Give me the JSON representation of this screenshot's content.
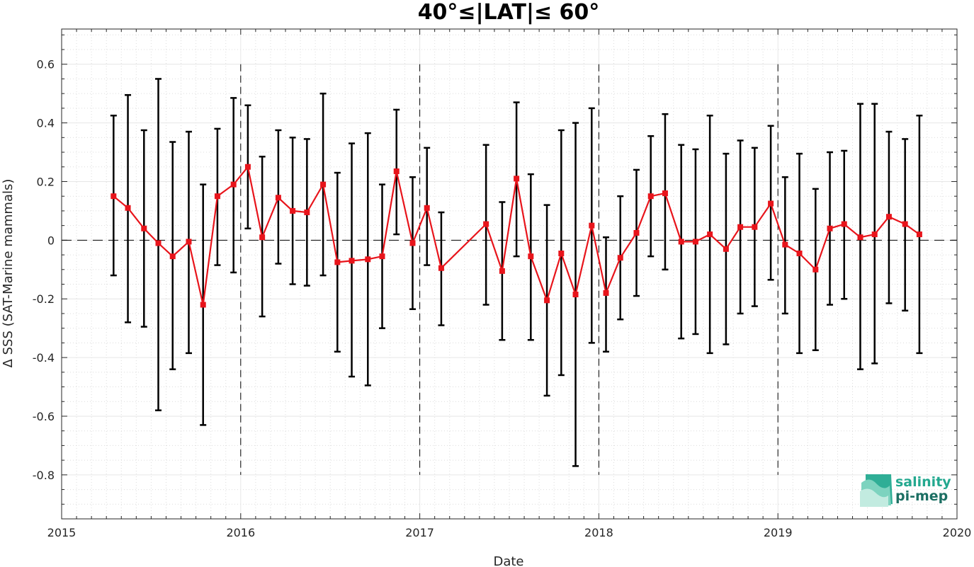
{
  "chart_data": {
    "type": "line",
    "title": "40°≤|LAT|≤ 60°",
    "xlabel": "Date",
    "ylabel": "Δ SSS (SAT-Marine mammals)",
    "xlim": [
      2015,
      2020
    ],
    "ylim": [
      -0.95,
      0.72
    ],
    "x_ticks": [
      "2015",
      "2016",
      "2017",
      "2018",
      "2019",
      "2020"
    ],
    "y_ticks": [
      "-0.8",
      "-0.6",
      "-0.4",
      "-0.2",
      "0",
      "0.2",
      "0.4",
      "0.6"
    ],
    "grid": true,
    "colors": {
      "mean": "#e8141b",
      "errorbar": "#000000",
      "zero_line": "#000000"
    },
    "series": [
      {
        "x": [
          2015.29,
          2015.37,
          2015.46,
          2015.54,
          2015.62,
          2015.71,
          2015.79,
          2015.87,
          2015.96,
          2016.04,
          2016.12,
          2016.21,
          2016.29,
          2016.37,
          2016.46,
          2016.54,
          2016.62,
          2016.71,
          2016.79,
          2016.87,
          2016.96,
          2017.04,
          2017.12,
          2017.37,
          2017.46,
          2017.54,
          2017.62,
          2017.71,
          2017.79,
          2017.87,
          2017.96,
          2018.04,
          2018.12,
          2018.21,
          2018.29,
          2018.37,
          2018.46,
          2018.54,
          2018.62,
          2018.71,
          2018.79,
          2018.87,
          2018.96,
          2019.04,
          2019.12,
          2019.21,
          2019.29,
          2019.37,
          2019.46,
          2019.54,
          2019.62,
          2019.71,
          2019.79
        ],
        "values": [
          0.15,
          0.11,
          0.04,
          -0.01,
          -0.055,
          -0.005,
          -0.22,
          0.15,
          0.19,
          0.25,
          0.01,
          0.145,
          0.1,
          0.095,
          0.19,
          -0.075,
          -0.07,
          -0.065,
          -0.055,
          0.235,
          -0.01,
          0.11,
          -0.095,
          0.055,
          -0.105,
          0.21,
          -0.055,
          -0.205,
          -0.045,
          -0.185,
          0.05,
          -0.18,
          -0.06,
          0.025,
          0.15,
          0.16,
          -0.005,
          -0.005,
          0.02,
          -0.03,
          0.045,
          0.045,
          0.125,
          -0.015,
          -0.045,
          -0.1,
          0.04,
          0.055,
          0.01,
          0.02,
          0.08,
          0.055,
          0.02
        ],
        "lower": [
          -0.12,
          -0.28,
          -0.295,
          -0.58,
          -0.44,
          -0.385,
          -0.63,
          -0.085,
          -0.11,
          0.04,
          -0.26,
          -0.08,
          -0.15,
          -0.155,
          -0.12,
          -0.38,
          -0.465,
          -0.495,
          -0.3,
          0.02,
          -0.235,
          -0.085,
          -0.29,
          -0.22,
          -0.34,
          -0.055,
          -0.34,
          -0.53,
          -0.46,
          -0.77,
          -0.35,
          -0.38,
          -0.27,
          -0.19,
          -0.055,
          -0.1,
          -0.335,
          -0.32,
          -0.385,
          -0.355,
          -0.25,
          -0.225,
          -0.135,
          -0.25,
          -0.385,
          -0.375,
          -0.22,
          -0.2,
          -0.44,
          -0.42,
          -0.215,
          -0.24,
          -0.385
        ],
        "upper": [
          0.425,
          0.495,
          0.375,
          0.55,
          0.335,
          0.37,
          0.19,
          0.38,
          0.485,
          0.46,
          0.285,
          0.375,
          0.35,
          0.345,
          0.5,
          0.23,
          0.33,
          0.365,
          0.19,
          0.445,
          0.215,
          0.315,
          0.095,
          0.325,
          0.13,
          0.47,
          0.225,
          0.12,
          0.375,
          0.4,
          0.45,
          0.01,
          0.15,
          0.24,
          0.355,
          0.43,
          0.325,
          0.31,
          0.425,
          0.295,
          0.34,
          0.315,
          0.39,
          0.215,
          0.295,
          0.175,
          0.3,
          0.305,
          0.465,
          0.465,
          0.37,
          0.345,
          0.425
        ]
      }
    ],
    "year_dividers": [
      2016,
      2017,
      2018,
      2019
    ]
  },
  "logo": {
    "line1": "salinity",
    "line2": "pi-mep"
  }
}
